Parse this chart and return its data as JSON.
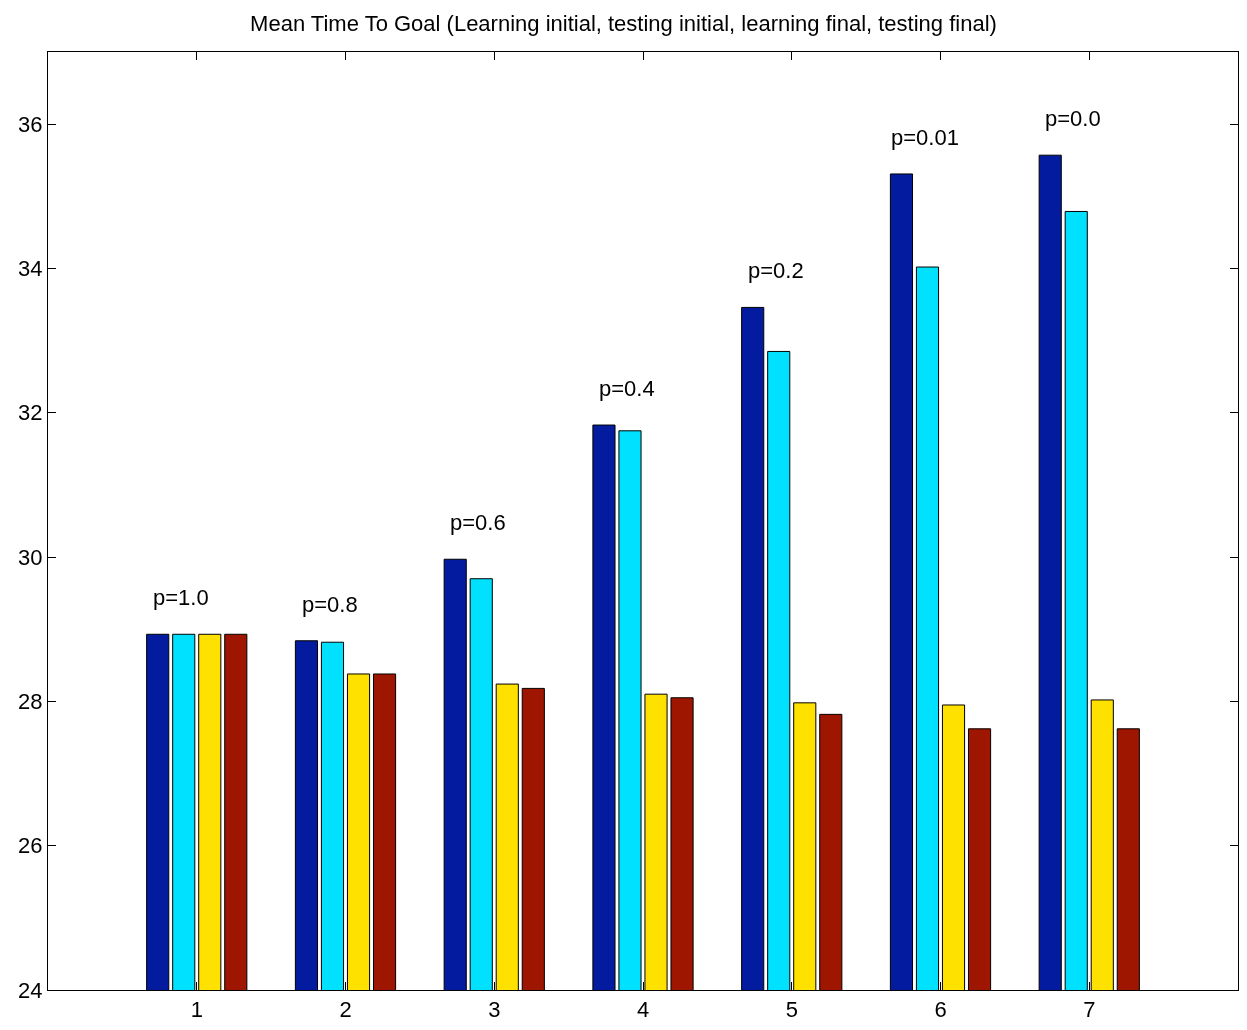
{
  "chart_data": {
    "type": "bar",
    "title": "Mean Time To Goal (Learning initial, testing initial, learning final, testing final)",
    "x": [
      1,
      2,
      3,
      4,
      5,
      6,
      7
    ],
    "series": [
      {
        "color": "#031b9e",
        "values": [
          28.93,
          28.84,
          29.97,
          31.83,
          33.46,
          35.31,
          35.57
        ]
      },
      {
        "color": "#00e1ff",
        "values": [
          28.93,
          28.82,
          29.7,
          31.75,
          32.85,
          34.02,
          34.79
        ]
      },
      {
        "color": "#ffe100",
        "values": [
          28.93,
          28.38,
          28.24,
          28.1,
          27.98,
          27.95,
          28.02
        ]
      },
      {
        "color": "#9e1600",
        "values": [
          28.93,
          28.38,
          28.18,
          28.05,
          27.82,
          27.62,
          27.62
        ]
      }
    ],
    "xlim": [
      0,
      8
    ],
    "xticks": [
      1,
      2,
      3,
      4,
      5,
      6,
      7
    ],
    "ylim": [
      24,
      37
    ],
    "yticks": [
      24,
      26,
      28,
      30,
      32,
      34,
      36
    ],
    "annotations": [
      "p=1.0",
      "p=0.8",
      "p=0.6",
      "p=0.4",
      "p=0.2",
      "p=0.01",
      "p=0.0"
    ]
  }
}
